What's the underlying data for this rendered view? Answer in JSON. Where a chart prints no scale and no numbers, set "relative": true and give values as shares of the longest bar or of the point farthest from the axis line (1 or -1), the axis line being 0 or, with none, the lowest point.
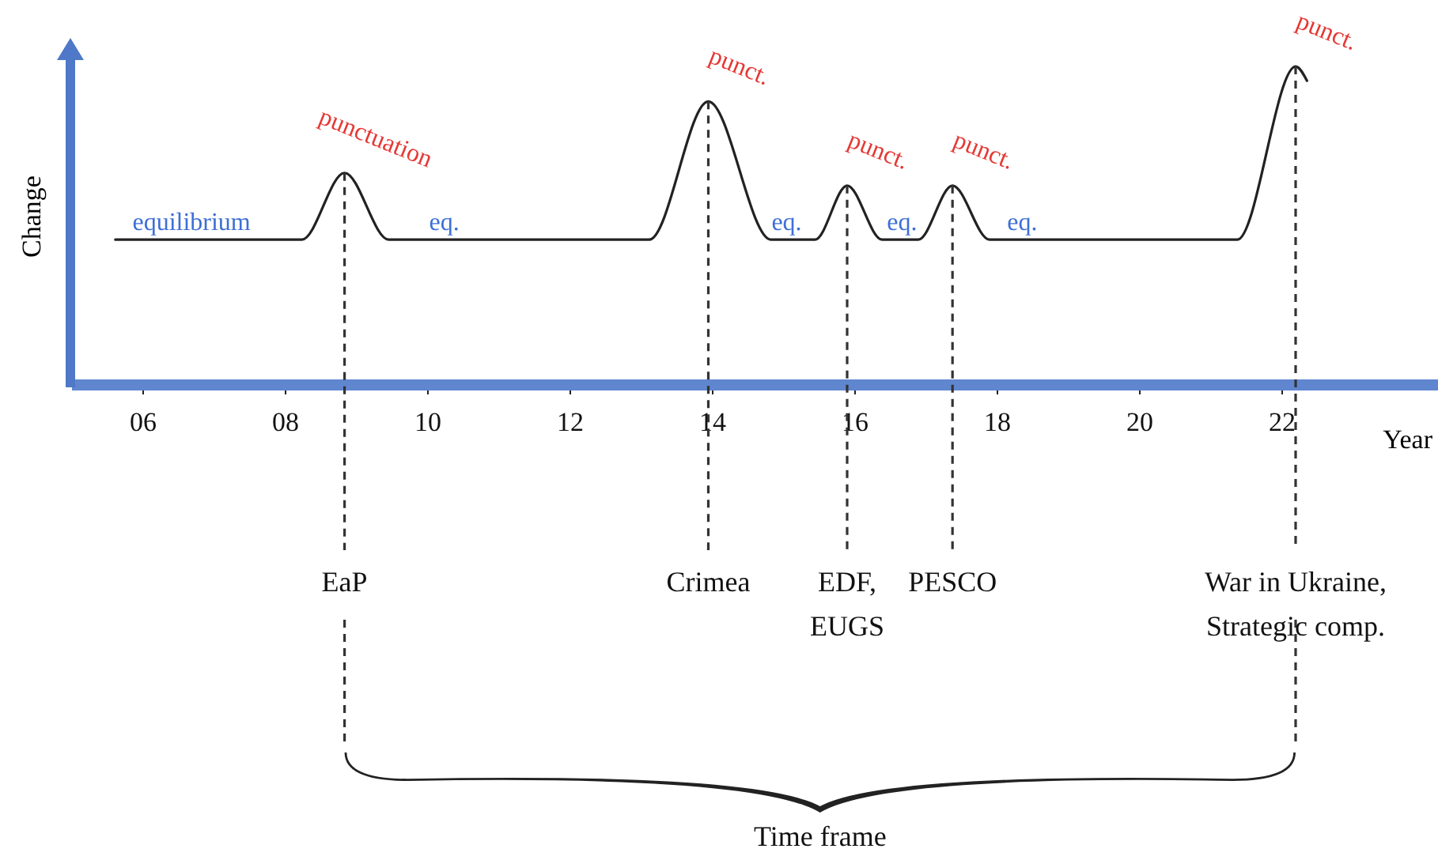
{
  "chart_data": {
    "type": "line",
    "relative": true,
    "xlabel": "Year",
    "ylabel": "Change",
    "xlim": [
      5,
      24.2
    ],
    "xticks": [
      {
        "value": 6,
        "label": "06"
      },
      {
        "value": 8,
        "label": "08"
      },
      10,
      12,
      14,
      16,
      18,
      20,
      22
    ],
    "x": [
      5.62,
      8.24,
      8.84,
      9.46,
      13.12,
      13.95,
      14.83,
      15.45,
      15.9,
      16.39,
      16.9,
      17.38,
      17.9,
      21.38,
      22.2,
      22.36
    ],
    "series": [
      {
        "color": "#222222",
        "values": [
          0.455,
          0.455,
          0.665,
          0.455,
          0.455,
          0.89,
          0.455,
          0.455,
          0.625,
          0.455,
          0.455,
          0.625,
          0.455,
          0.455,
          1.0,
          0.955
        ]
      }
    ],
    "marker": "none",
    "line_style": "solid",
    "grid": false,
    "ref_lines": [
      {
        "axis": "x",
        "value": 8.84,
        "label": "EaP"
      },
      {
        "axis": "x",
        "value": 13.95,
        "label": "Crimea"
      },
      {
        "axis": "x",
        "value": 15.9,
        "label": "EDF,\nEUGS"
      },
      {
        "axis": "x",
        "value": 17.38,
        "label": "PESCO"
      },
      {
        "axis": "x",
        "value": 22.2,
        "label": "War in Ukraine,\nStrategic comp."
      }
    ],
    "annotations": [
      {
        "text": "equilibrium",
        "x": 6.69,
        "y": 0.455
      },
      {
        "text": "punctuation",
        "x": 8.84,
        "y": 0.665
      },
      {
        "text": "eq.",
        "x": 10.24,
        "y": 0.455
      },
      {
        "text": "punct.",
        "x": 13.95,
        "y": 0.89
      },
      {
        "text": "eq.",
        "x": 15.05,
        "y": 0.455
      },
      {
        "text": "punct.",
        "x": 15.9,
        "y": 0.625
      },
      {
        "text": "eq.",
        "x": 16.67,
        "y": 0.455
      },
      {
        "text": "punct.",
        "x": 17.38,
        "y": 0.625
      },
      {
        "text": "eq.",
        "x": 18.36,
        "y": 0.455
      },
      {
        "text": "punct.",
        "x": 22.2,
        "y": 1.0
      },
      "Time frame"
    ]
  }
}
